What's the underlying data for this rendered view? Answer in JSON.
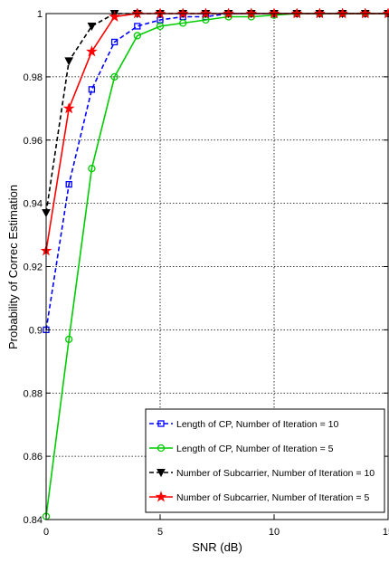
{
  "chart_data": {
    "type": "line",
    "title": "",
    "xlabel": "SNR (dB)",
    "ylabel": "Probability of Correc Estimation",
    "xlim": [
      0,
      15
    ],
    "ylim": [
      0.84,
      1
    ],
    "xticks": [
      0,
      5,
      10,
      15
    ],
    "yticks": [
      0.84,
      0.86,
      0.88,
      0.9,
      0.92,
      0.94,
      0.96,
      0.98,
      1
    ],
    "ytick_labels": [
      "0.84",
      "0.86",
      "0.88",
      "0.9",
      "0.92",
      "0.94",
      "0.96",
      "0.98",
      "1"
    ],
    "xtick_labels": [
      "0",
      "5",
      "10",
      "15"
    ],
    "grid": true,
    "legend_position": "bottom-right",
    "x": [
      0,
      1,
      2,
      3,
      4,
      5,
      6,
      7,
      8,
      9,
      10,
      11,
      12,
      13,
      14,
      15
    ],
    "series": [
      {
        "name": "Length of CP, Number of Iteration = 10",
        "color": "#0000ff",
        "line_style": "dashed",
        "marker": "square",
        "values": [
          0.9,
          0.946,
          0.976,
          0.991,
          0.996,
          0.998,
          0.999,
          0.999,
          1,
          1,
          1,
          1,
          1,
          1,
          1,
          1
        ]
      },
      {
        "name": "Length of CP, Number of Iteration = 5",
        "color": "#00cc00",
        "line_style": "solid",
        "marker": "circle",
        "values": [
          0.841,
          0.897,
          0.951,
          0.98,
          0.993,
          0.996,
          0.997,
          0.998,
          0.999,
          0.999,
          0.9995,
          1,
          1,
          1,
          1,
          1
        ]
      },
      {
        "name": "Number of Subcarrier, Number of Iteration = 10",
        "color": "#000000",
        "line_style": "dashed",
        "marker": "triangle-down",
        "values": [
          0.937,
          0.985,
          0.996,
          1,
          1,
          1,
          1,
          1,
          1,
          1,
          1,
          1,
          1,
          1,
          1,
          1
        ]
      },
      {
        "name": "Number of Subcarrier, Number of Iteration = 5",
        "color": "#ff0000",
        "line_style": "solid",
        "marker": "star",
        "values": [
          0.925,
          0.97,
          0.988,
          0.999,
          1,
          1,
          1,
          1,
          1,
          1,
          1,
          1,
          1,
          1,
          1,
          1
        ]
      }
    ]
  }
}
